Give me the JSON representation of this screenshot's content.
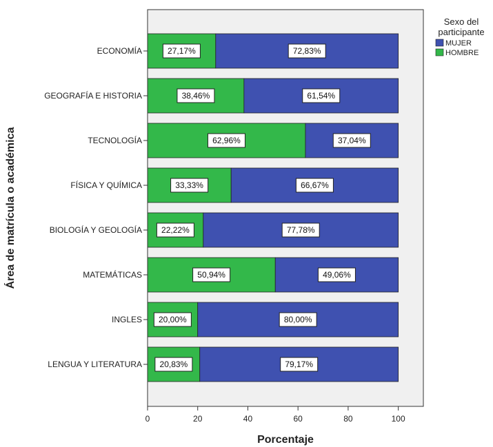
{
  "chart_data": {
    "type": "bar",
    "orientation": "horizontal",
    "stacked": true,
    "categories": [
      "ECONOMÍA",
      "GEOGRAFÍA E HISTORIA",
      "TECNOLOGÍA",
      "FÍSICA Y QUÍMICA",
      "BIOLOGÍA Y GEOLOGÍA",
      "MATEMÁTICAS",
      "INGLES",
      "LENGUA Y LITERATURA"
    ],
    "series": [
      {
        "name": "HOMBRE",
        "color": "#33b84a",
        "values": [
          27.17,
          38.46,
          62.96,
          33.33,
          22.22,
          50.94,
          20.0,
          20.83
        ],
        "labels": [
          "27,17%",
          "38,46%",
          "62,96%",
          "33,33%",
          "22,22%",
          "50,94%",
          "20,00%",
          "20,83%"
        ]
      },
      {
        "name": "MUJER",
        "color": "#3f51b0",
        "values": [
          72.83,
          61.54,
          37.04,
          66.67,
          77.78,
          49.06,
          80.0,
          79.17
        ],
        "labels": [
          "72,83%",
          "61,54%",
          "37,04%",
          "66,67%",
          "77,78%",
          "49,06%",
          "80,00%",
          "79,17%"
        ]
      }
    ],
    "xlabel": "Porcentaje",
    "ylabel": "Área de matrícula o académica",
    "xlim": [
      0,
      110
    ],
    "xticks": [
      0,
      20,
      40,
      60,
      80,
      100
    ],
    "xtick_labels": [
      "0",
      "20",
      "40",
      "60",
      "80",
      "100"
    ],
    "legend": {
      "title_lines": [
        "Sexo del",
        "participante"
      ],
      "placement": "top-right",
      "entries": [
        {
          "name": "MUJER",
          "color": "#3f51b0"
        },
        {
          "name": "HOMBRE",
          "color": "#33b84a"
        }
      ]
    },
    "plot_background": "#f0f0f0",
    "grid": false
  }
}
